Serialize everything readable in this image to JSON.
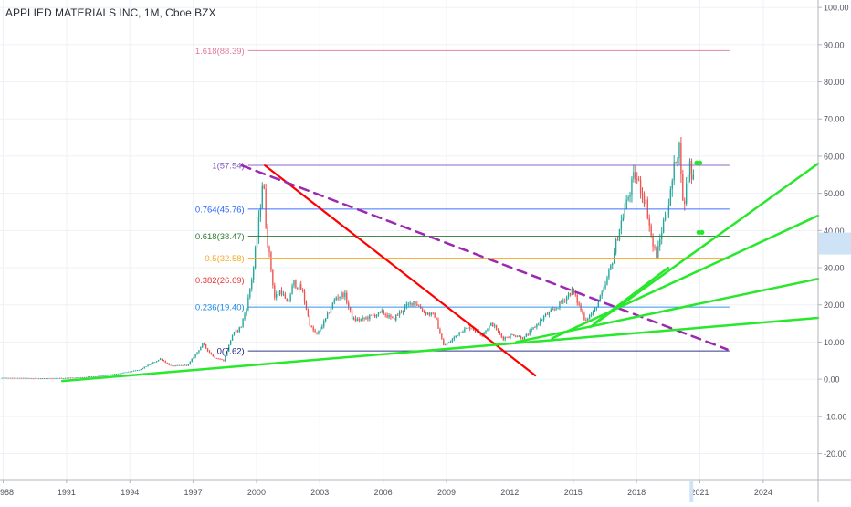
{
  "chart_data": {
    "type": "candlestick",
    "title": "APPLIED MATERIALS INC, 1M, Cboe BZX",
    "x_tick_labels": [
      "988",
      "1991",
      "1994",
      "1997",
      "2000",
      "2003",
      "2006",
      "2009",
      "2012",
      "2015",
      "2018",
      "2021",
      "2024"
    ],
    "y_tick_labels": [
      "100.00",
      "90.00",
      "80.00",
      "70.00",
      "60.00",
      "50.00",
      "40.00",
      "30.00",
      "20.00",
      "10.00",
      "0.00",
      "-10.00",
      "-20.00"
    ],
    "ylim": [
      -27,
      102
    ],
    "xlim": [
      1987.85,
      2026.6
    ],
    "grid": true,
    "price_series": [
      [
        1987.9,
        0.3
      ],
      [
        1989.0,
        0.25
      ],
      [
        1990.5,
        0.2
      ],
      [
        1991.5,
        0.4
      ],
      [
        1992.5,
        0.8
      ],
      [
        1993.5,
        1.5
      ],
      [
        1994.5,
        2.5
      ],
      [
        1995.5,
        5.5
      ],
      [
        1996.0,
        3.5
      ],
      [
        1996.8,
        3.8
      ],
      [
        1997.5,
        9.5
      ],
      [
        1998.0,
        6.0
      ],
      [
        1998.5,
        5.0
      ],
      [
        1998.9,
        12.0
      ],
      [
        1999.3,
        14.0
      ],
      [
        1999.6,
        20.0
      ],
      [
        1999.9,
        30.0
      ],
      [
        2000.2,
        45.0
      ],
      [
        2000.35,
        55.0
      ],
      [
        2000.5,
        40.0
      ],
      [
        2000.7,
        31.0
      ],
      [
        2000.9,
        22.0
      ],
      [
        2001.2,
        24.0
      ],
      [
        2001.5,
        20.0
      ],
      [
        2001.8,
        26.0
      ],
      [
        2002.2,
        24.0
      ],
      [
        2002.6,
        14.0
      ],
      [
        2002.9,
        12.0
      ],
      [
        2003.3,
        16.0
      ],
      [
        2003.8,
        22.0
      ],
      [
        2004.2,
        23.0
      ],
      [
        2004.6,
        16.0
      ],
      [
        2005.0,
        16.0
      ],
      [
        2005.5,
        17.0
      ],
      [
        2006.0,
        18.0
      ],
      [
        2006.5,
        16.0
      ],
      [
        2007.0,
        19.0
      ],
      [
        2007.5,
        21.0
      ],
      [
        2008.0,
        18.0
      ],
      [
        2008.5,
        17.0
      ],
      [
        2008.9,
        9.0
      ],
      [
        2009.2,
        10.0
      ],
      [
        2009.7,
        13.0
      ],
      [
        2010.2,
        14.0
      ],
      [
        2010.7,
        12.0
      ],
      [
        2011.2,
        15.0
      ],
      [
        2011.7,
        11.0
      ],
      [
        2012.2,
        12.0
      ],
      [
        2012.7,
        11.0
      ],
      [
        2013.2,
        14.0
      ],
      [
        2013.7,
        17.0
      ],
      [
        2014.2,
        19.0
      ],
      [
        2014.7,
        22.0
      ],
      [
        2015.0,
        24.0
      ],
      [
        2015.3,
        20.0
      ],
      [
        2015.6,
        16.0
      ],
      [
        2016.0,
        18.0
      ],
      [
        2016.5,
        24.0
      ],
      [
        2016.9,
        32.0
      ],
      [
        2017.2,
        40.0
      ],
      [
        2017.5,
        46.0
      ],
      [
        2017.8,
        52.0
      ],
      [
        2017.95,
        55.0
      ],
      [
        2018.2,
        52.0
      ],
      [
        2018.5,
        47.0
      ],
      [
        2018.8,
        36.0
      ],
      [
        2019.0,
        33.0
      ],
      [
        2019.3,
        42.0
      ],
      [
        2019.6,
        48.0
      ],
      [
        2019.9,
        60.0
      ],
      [
        2020.1,
        63.0
      ],
      [
        2020.25,
        45.0
      ],
      [
        2020.4,
        52.0
      ],
      [
        2020.55,
        59.0
      ],
      [
        2020.65,
        55.0
      ]
    ],
    "fib_levels": [
      {
        "label": "1.618(88.39)",
        "value": 88.39,
        "color": "#e07a9a"
      },
      {
        "label": "1(57.54)",
        "value": 57.54,
        "color": "#7e57c2"
      },
      {
        "label": "0.764(45.76)",
        "value": 45.76,
        "color": "#2962ff"
      },
      {
        "label": "0.618(38.47)",
        "value": 38.47,
        "color": "#2e7d32"
      },
      {
        "label": "0.5(32.58)",
        "value": 32.58,
        "color": "#f9a825"
      },
      {
        "label": "0.382(26.69)",
        "value": 26.69,
        "color": "#e53935"
      },
      {
        "label": "0.236(19.40)",
        "value": 19.4,
        "color": "#1e88e5"
      },
      {
        "label": "0(7.62)",
        "value": 7.62,
        "color": "#1a237e"
      }
    ],
    "trendlines": [
      {
        "name": "red-downtrend",
        "color": "#ff0000",
        "dashed": false,
        "from": [
          2000.4,
          57.5
        ],
        "to": [
          2013.2,
          1.0
        ]
      },
      {
        "name": "purple-dashed-downtrend",
        "color": "#9c27b0",
        "dashed": true,
        "from": [
          1999.3,
          57.5
        ],
        "to": [
          2022.3,
          8.0
        ]
      },
      {
        "name": "green-support-long",
        "color": "#27e82a",
        "dashed": false,
        "from": [
          1990.8,
          -0.5
        ],
        "to": [
          2026.6,
          16.5
        ]
      },
      {
        "name": "green-fan-1",
        "color": "#27e82a",
        "dashed": false,
        "from": [
          2012.3,
          10.0
        ],
        "to": [
          2026.6,
          27.0
        ]
      },
      {
        "name": "green-fan-2",
        "color": "#27e82a",
        "dashed": false,
        "from": [
          2014.0,
          11.0
        ],
        "to": [
          2026.6,
          44.0
        ]
      },
      {
        "name": "green-fan-3",
        "color": "#27e82a",
        "dashed": false,
        "from": [
          2015.8,
          14.0
        ],
        "to": [
          2026.6,
          58.0
        ]
      },
      {
        "name": "green-fan-4",
        "color": "#27e82a",
        "dashed": false,
        "from": [
          2016.0,
          15.0
        ],
        "to": [
          2019.5,
          30.0
        ]
      }
    ],
    "price_axis_highlight_value": 36.5,
    "time_axis_highlight_value": 2020.6,
    "colors": {
      "up": "#26a69a",
      "down": "#ef5350",
      "grid": "#eef1f5",
      "axis_text": "#50535e",
      "highlight": "#cfe3f7"
    }
  }
}
